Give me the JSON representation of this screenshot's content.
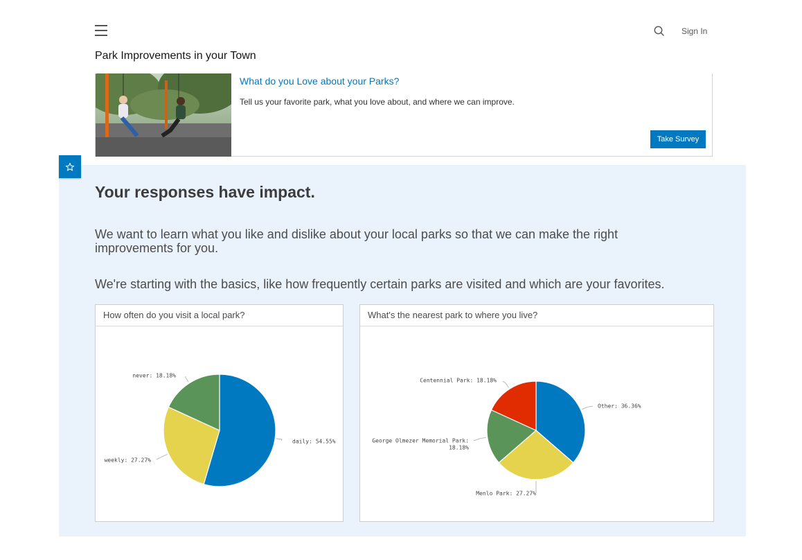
{
  "header": {
    "menu_icon": "hamburger-icon",
    "search_icon": "search-icon",
    "sign_in": "Sign In",
    "site_title": "Park Improvements in your Town"
  },
  "survey_card": {
    "image_icon": "park-swings-photo",
    "title": "What do you Love about your Parks?",
    "description": "Tell us your favorite park, what you love about, and where we can improve.",
    "button": "Take Survey"
  },
  "section": {
    "badge_icon": "star-icon",
    "heading": "Your responses have impact.",
    "paragraph1": "We want to learn what you like and dislike about your local parks so that we can make the right improvements for you.",
    "paragraph2": "We're starting with the basics, like how frequently certain parks are visited and which are your favorites."
  },
  "colors": {
    "accent": "#0079c1",
    "panel_bg": "#eaf3fb",
    "blue": "#0079c1",
    "yellow": "#e5d34d",
    "green": "#5a9458",
    "red": "#e12b00"
  },
  "chart_data": [
    {
      "type": "pie",
      "title": "How often do you visit a local park?",
      "slices": [
        {
          "label": "daily: 54.55%",
          "value": 54.55,
          "color": "#0079c1"
        },
        {
          "label": "weekly: 27.27%",
          "value": 27.27,
          "color": "#e5d34d"
        },
        {
          "label": "never: 18.18%",
          "value": 18.18,
          "color": "#5a9458"
        }
      ]
    },
    {
      "type": "pie",
      "title": "What's the nearest park to where you live?",
      "slices": [
        {
          "label": "Other: 36.36%",
          "value": 36.36,
          "color": "#0079c1"
        },
        {
          "label": "Menlo Park: 27.27%",
          "value": 27.27,
          "color": "#e5d34d"
        },
        {
          "label": "George Olmezer Memorial Park: 18.18%",
          "label_lines": [
            "George Olmezer Memorial Park:",
            "18.18%"
          ],
          "value": 18.18,
          "color": "#5a9458"
        },
        {
          "label": "Centennial Park: 18.18%",
          "value": 18.18,
          "color": "#e12b00"
        }
      ]
    }
  ]
}
